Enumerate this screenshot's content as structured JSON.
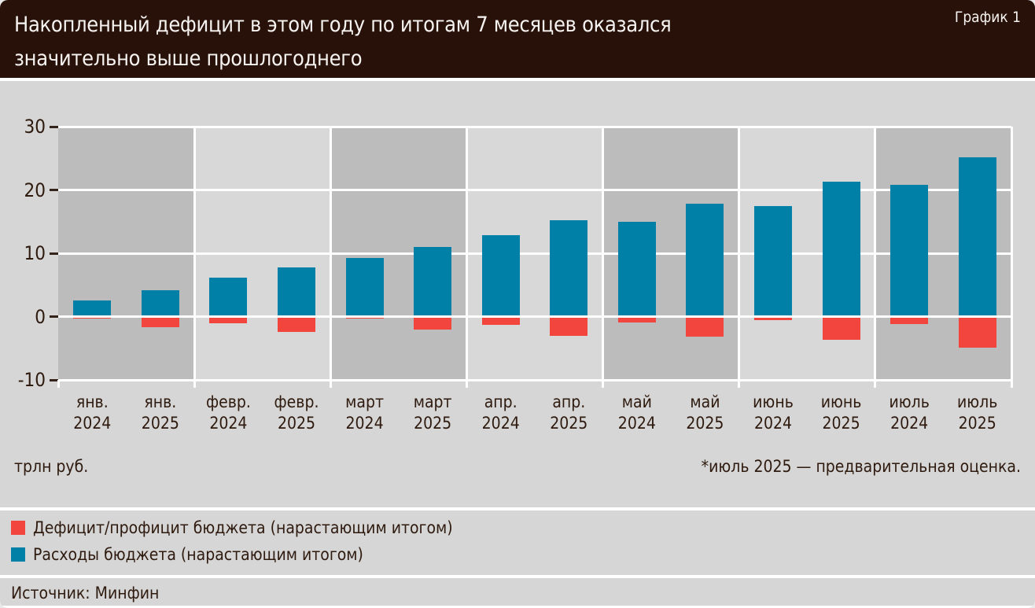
{
  "header": {
    "title_line1": "Накопленный дефицит в этом году по итогам 7 месяцев оказался",
    "title_line2": "значительно выше прошлогоднего",
    "tag": "График 1"
  },
  "chart_data": {
    "type": "bar",
    "title": "Накопленный дефицит в этом году по итогам 7 месяцев оказался значительно выше прошлогоднего",
    "ylabel": "трлн руб.",
    "ylim": [
      -10,
      30
    ],
    "yticks": [
      30,
      20,
      10,
      0,
      -10
    ],
    "grid": "white horizontal gridlines, alternating gray month bands",
    "legend_position": "bottom-left",
    "categories": [
      {
        "month": "янв.",
        "year": "2024"
      },
      {
        "month": "янв.",
        "year": "2025"
      },
      {
        "month": "февр.",
        "year": "2024"
      },
      {
        "month": "февр.",
        "year": "2025"
      },
      {
        "month": "март",
        "year": "2024"
      },
      {
        "month": "март",
        "year": "2025"
      },
      {
        "month": "апр.",
        "year": "2024"
      },
      {
        "month": "апр.",
        "year": "2025"
      },
      {
        "month": "май",
        "year": "2024"
      },
      {
        "month": "май",
        "year": "2025"
      },
      {
        "month": "июнь",
        "year": "2024"
      },
      {
        "month": "июнь",
        "year": "2025"
      },
      {
        "month": "июль",
        "year": "2024"
      },
      {
        "month": "июль",
        "year": "2025"
      }
    ],
    "series": [
      {
        "name": "Расходы бюджета (нарастающим итогом)",
        "color": "#0080a6",
        "values": [
          2.5,
          4.2,
          6.2,
          7.8,
          9.2,
          11.0,
          12.9,
          15.2,
          15.0,
          17.8,
          17.5,
          21.3,
          20.8,
          25.2
        ]
      },
      {
        "name": "Дефицит/профицит бюджета (нарастающим итогом)",
        "color": "#f1453d",
        "values": [
          -0.3,
          -1.7,
          -1.1,
          -2.4,
          -0.3,
          -2.1,
          -1.3,
          -3.1,
          -0.9,
          -3.2,
          -0.6,
          -3.7,
          -1.2,
          -4.9
        ]
      }
    ]
  },
  "units_label": "трлн руб.",
  "footnote": "*июль 2025 — предварительная оценка.",
  "legend": [
    {
      "label": "Дефицит/профицит бюджета (нарастающим итогом)",
      "color": "#f1453d"
    },
    {
      "label": "Расходы бюджета (нарастающим итогом)",
      "color": "#0080a6"
    }
  ],
  "source": "Источник: Минфин",
  "colors": {
    "header_bg": "#271109",
    "page_bg": "#d6d6d6",
    "band_dark": "#bcbcbc",
    "band_light": "#d8d8d8",
    "expenses_blue": "#0080a6",
    "deficit_red": "#f1453d",
    "text": "#2e1a0e",
    "gridline": "#ffffff"
  }
}
